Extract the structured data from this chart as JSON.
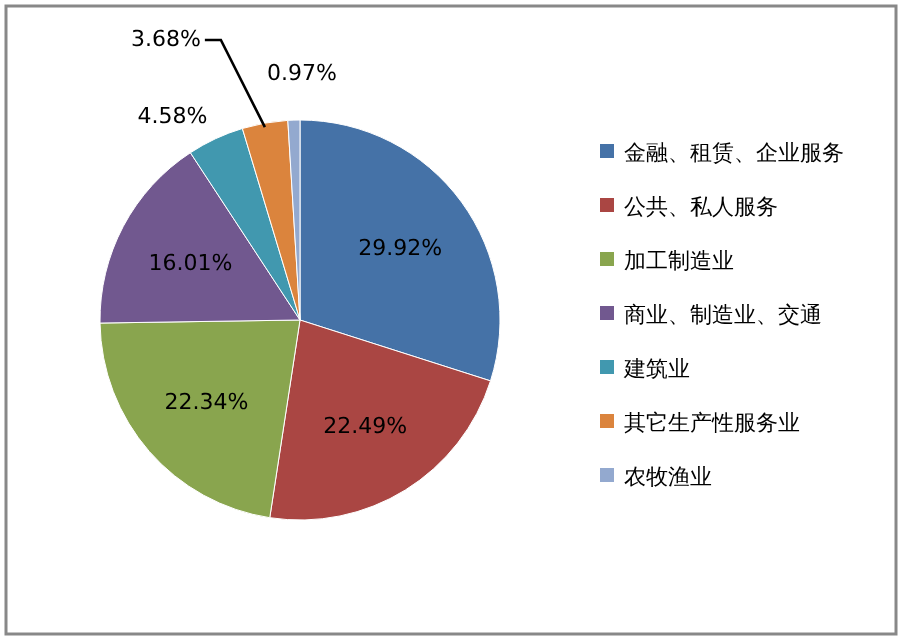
{
  "chart_data": {
    "type": "pie",
    "categories": [
      "金融、租赁、企业服务",
      "公共、私人服务",
      "加工制造业",
      "商业、制造业、交通",
      "建筑业",
      "其它生产性服务业",
      "农牧渔业"
    ],
    "values": [
      29.92,
      22.49,
      22.34,
      16.01,
      4.58,
      3.68,
      0.97
    ],
    "value_labels": [
      "29.92%",
      "22.49%",
      "22.34%",
      "16.01%",
      "4.58%",
      "3.68%",
      "0.97%"
    ],
    "colors": [
      "#4572a7",
      "#aa4643",
      "#89a54e",
      "#71588f",
      "#4198af",
      "#db843d",
      "#93a9cf"
    ],
    "legend": "right"
  }
}
